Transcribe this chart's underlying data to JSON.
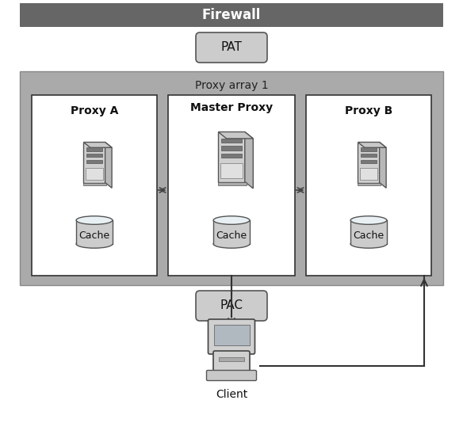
{
  "fig_width": 5.84,
  "fig_height": 5.58,
  "dpi": 100,
  "bg_color": "#ffffff",
  "firewall_bar_color": "#666666",
  "firewall_text": "Firewall",
  "firewall_text_color": "#ffffff",
  "pat_text": "PAT",
  "pac_text": "PAC",
  "proxy_array_label": "Proxy array 1",
  "proxy_array_bg": "#aaaaaa",
  "proxy_a_label": "Proxy A",
  "proxy_b_label": "Proxy B",
  "master_proxy_label": "Master Proxy",
  "cache_label": "Cache",
  "client_label": "Client",
  "white_box_color": "#ffffff",
  "white_box_edge": "#333333",
  "rounded_box_color": "#cccccc",
  "rounded_box_edge": "#555555",
  "arrow_color": "#333333",
  "dashed_color": "#444444"
}
